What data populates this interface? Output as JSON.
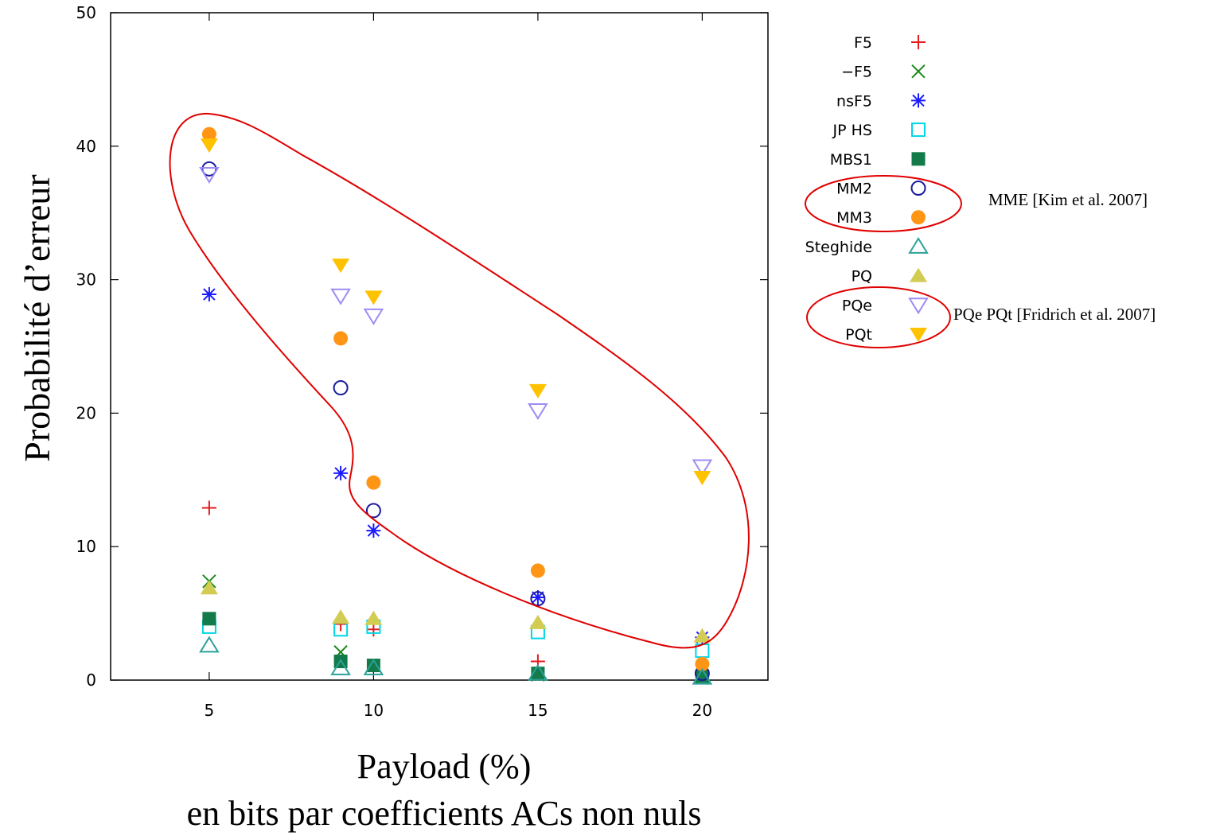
{
  "chart_data": {
    "type": "scatter",
    "ylabel": "Probabilité d’erreur",
    "xlabel_line1": "Payload (%)",
    "xlabel_line2": "en bits par coefficients ACs non nuls",
    "xlim": [
      2,
      22
    ],
    "ylim": [
      0,
      50
    ],
    "x_ticks": [
      5,
      10,
      15,
      20
    ],
    "y_ticks": [
      0,
      10,
      20,
      30,
      40,
      50
    ],
    "grid": false,
    "legend_position": "right, outside plot",
    "series": [
      {
        "name": "F5",
        "marker": "plus",
        "color": "#e41a1c",
        "points": [
          [
            5,
            12.9
          ],
          [
            9,
            4.2
          ],
          [
            10,
            3.8
          ],
          [
            15,
            1.4
          ],
          [
            20,
            0.6
          ]
        ]
      },
      {
        "name": "−F5",
        "marker": "x",
        "color": "#1b8a1b",
        "points": [
          [
            5,
            7.4
          ],
          [
            9,
            2.1
          ],
          [
            10,
            1.1
          ],
          [
            15,
            0.4
          ],
          [
            20,
            0.2
          ]
        ]
      },
      {
        "name": "nsF5",
        "marker": "star",
        "color": "#1a1aff",
        "points": [
          [
            5,
            28.9
          ],
          [
            9,
            15.5
          ],
          [
            10,
            11.2
          ],
          [
            15,
            6.2
          ],
          [
            20,
            3.2
          ]
        ]
      },
      {
        "name": "JP HS",
        "marker": "square-open",
        "color": "#00d6e6",
        "points": [
          [
            5,
            4.0
          ],
          [
            9,
            3.8
          ],
          [
            10,
            4.0
          ],
          [
            15,
            3.6
          ],
          [
            20,
            2.2
          ]
        ]
      },
      {
        "name": "MBS1",
        "marker": "square-filled",
        "color": "#137a4a",
        "points": [
          [
            5,
            4.6
          ],
          [
            9,
            1.4
          ],
          [
            10,
            1.1
          ],
          [
            15,
            0.5
          ],
          [
            20,
            0.3
          ]
        ]
      },
      {
        "name": "MM2",
        "marker": "circle-open",
        "color": "#1a1a9e",
        "points": [
          [
            5,
            38.3
          ],
          [
            9,
            21.9
          ],
          [
            10,
            12.7
          ],
          [
            15,
            6.1
          ],
          [
            20,
            0.5
          ]
        ]
      },
      {
        "name": "MM3",
        "marker": "circle-filled",
        "color": "#ff9514",
        "points": [
          [
            5,
            40.9
          ],
          [
            9,
            25.6
          ],
          [
            10,
            14.8
          ],
          [
            15,
            8.2
          ],
          [
            20,
            1.2
          ]
        ]
      },
      {
        "name": "Steghide",
        "marker": "triangle-up-open",
        "color": "#2aa198",
        "points": [
          [
            5,
            2.6
          ],
          [
            9,
            0.9
          ],
          [
            10,
            0.9
          ],
          [
            15,
            0.5
          ],
          [
            20,
            0.2
          ]
        ]
      },
      {
        "name": "PQ",
        "marker": "triangle-up-filled",
        "color": "#d2cc52",
        "points": [
          [
            5,
            6.9
          ],
          [
            9,
            4.7
          ],
          [
            10,
            4.6
          ],
          [
            15,
            4.3
          ],
          [
            20,
            3.3
          ]
        ]
      },
      {
        "name": "PQe",
        "marker": "triangle-down-open",
        "color": "#9d8cf2",
        "points": [
          [
            5,
            37.9
          ],
          [
            9,
            28.8
          ],
          [
            10,
            27.3
          ],
          [
            15,
            20.2
          ],
          [
            20,
            16.0
          ]
        ]
      },
      {
        "name": "PQt",
        "marker": "triangle-down-filled",
        "color": "#ffc200",
        "points": [
          [
            5,
            40.1
          ],
          [
            9,
            31.1
          ],
          [
            10,
            28.7
          ],
          [
            15,
            21.7
          ],
          [
            20,
            15.2
          ]
        ]
      }
    ],
    "annotations": [
      {
        "text": "MME [Kim et al. 2007]",
        "refers_to": [
          "MM2",
          "MM3"
        ]
      },
      {
        "text": "PQe PQt [Fridrich et al. 2007]",
        "refers_to": [
          "PQe",
          "PQt"
        ]
      }
    ],
    "highlight_color": "#e00000"
  }
}
